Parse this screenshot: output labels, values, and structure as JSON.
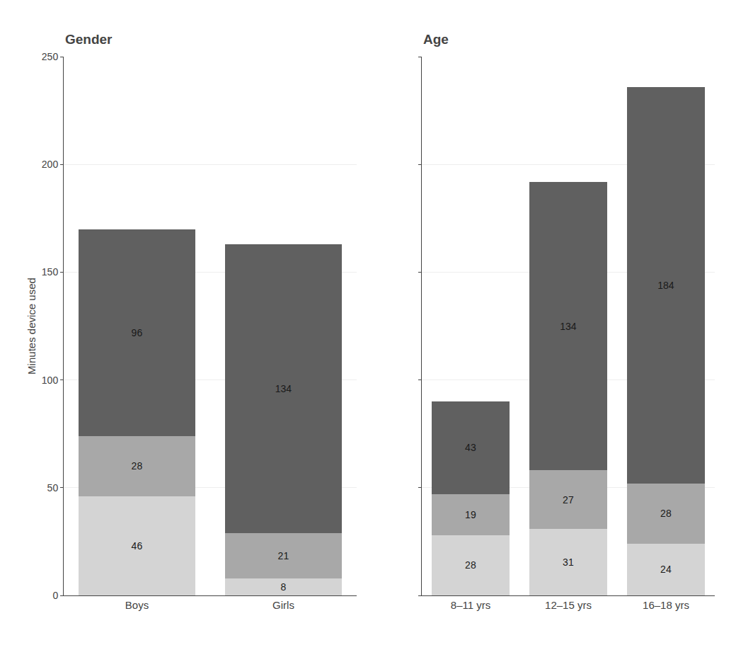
{
  "chart_data": [
    {
      "type": "bar",
      "title": "Gender",
      "stacked": true,
      "data_labels": true,
      "grid": true,
      "ylabel": "Minutes device used",
      "categories": [
        "Boys",
        "Girls"
      ],
      "series": [
        {
          "color": "#d4d4d4",
          "values": [
            46,
            8
          ]
        },
        {
          "color": "#a8a8a8",
          "values": [
            28,
            21
          ]
        },
        {
          "color": "#606060",
          "values": [
            96,
            134
          ]
        }
      ],
      "ylim": [
        0,
        250
      ],
      "yticks": [
        0,
        50,
        100,
        150,
        200,
        250
      ]
    },
    {
      "type": "bar",
      "title": "Age",
      "stacked": true,
      "data_labels": true,
      "grid": true,
      "tick_labels": "x",
      "categories": [
        "8–11 yrs",
        "12–15 yrs",
        "16–18 yrs"
      ],
      "series": [
        {
          "color": "#d4d4d4",
          "values": [
            28,
            31,
            24
          ]
        },
        {
          "color": "#a8a8a8",
          "values": [
            19,
            27,
            28
          ]
        },
        {
          "color": "#606060",
          "values": [
            43,
            134,
            184
          ]
        }
      ],
      "ylim": [
        0,
        250
      ],
      "yticks": [
        0,
        50,
        100,
        150,
        200,
        250
      ]
    }
  ]
}
